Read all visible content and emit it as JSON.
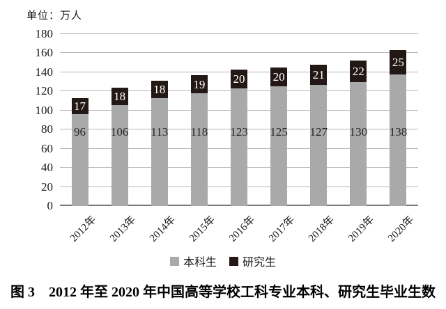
{
  "unit_label": "单位：万人",
  "caption": "图 3　2012 年至 2020 年中国高等学校工科专业本科、研究生毕业生数",
  "colors": {
    "undergrad_bar": "#a9a9a9",
    "grad_bar": "#231815",
    "gridline": "#b5b5b5",
    "axis_line": "#7a7a7a",
    "text": "#1a1a1a"
  },
  "chart_data": {
    "type": "bar",
    "stacked": true,
    "title": "图 3 2012 年至 2020 年中国高等学校工科专业本科、研究生毕业生数",
    "unit": "单位：万人",
    "categories": [
      "2012年",
      "2013年",
      "2014年",
      "2015年",
      "2016年",
      "2017年",
      "2018年",
      "2019年",
      "2020年"
    ],
    "series": [
      {
        "name": "本科生",
        "color": "#a9a9a9",
        "values": [
          96,
          106,
          113,
          118,
          123,
          125,
          127,
          130,
          138
        ],
        "label_color": "#262626",
        "label_position": "inside"
      },
      {
        "name": "研究生",
        "color": "#231815",
        "values": [
          17,
          18,
          18,
          19,
          20,
          20,
          21,
          22,
          25
        ],
        "label_color": "#ffffff",
        "label_position": "inside-center"
      }
    ],
    "ylim": [
      0,
      180
    ],
    "ytick_step": 20,
    "yticks": [
      0,
      20,
      40,
      60,
      80,
      100,
      120,
      140,
      160,
      180
    ],
    "grid": true,
    "legend_position": "bottom",
    "x_label_rotation": -45
  }
}
